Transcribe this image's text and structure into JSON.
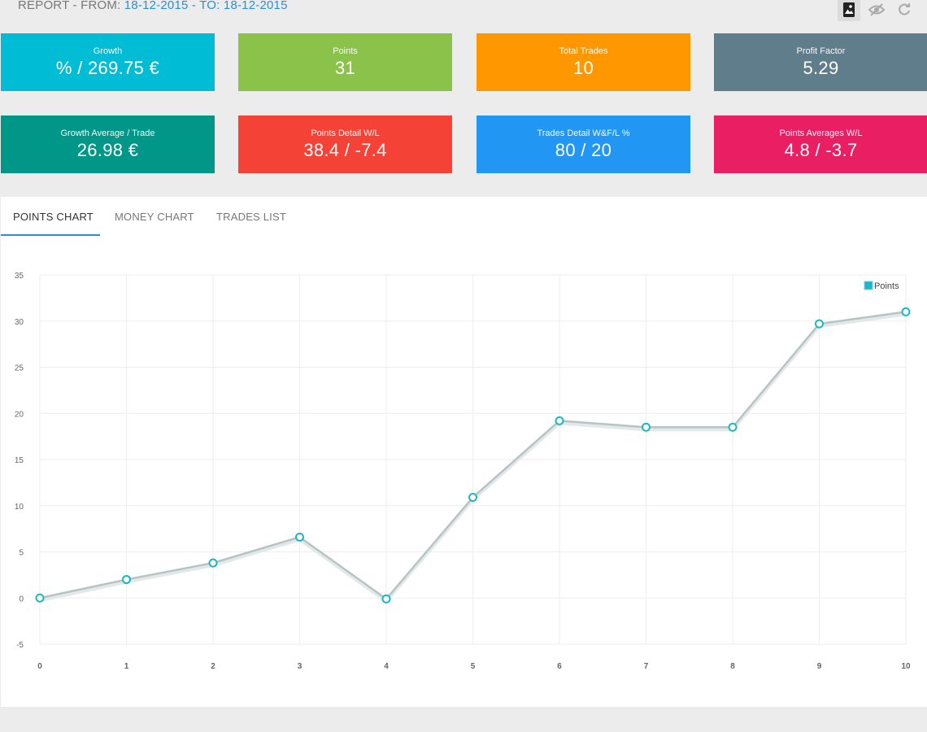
{
  "header": {
    "report_prefix": "REPORT - FROM:",
    "from_date": "18-12-2015",
    "to_prefix": "- TO:",
    "to_date": "18-12-2015",
    "tools": [
      "image-icon",
      "hide-icon",
      "refresh-icon"
    ]
  },
  "cards": [
    {
      "label": "Growth",
      "value": "% / 269.75 €",
      "color": "#00bcd4"
    },
    {
      "label": "Points",
      "value": "31",
      "color": "#8bc34a"
    },
    {
      "label": "Total Trades",
      "value": "10",
      "color": "#ff9800"
    },
    {
      "label": "Profit Factor",
      "value": "5.29",
      "color": "#607d8b"
    },
    {
      "label": "Growth Average / Trade",
      "value": "26.98 €",
      "color": "#009688"
    },
    {
      "label": "Points Detail W/L",
      "value": "38.4 / -7.4",
      "color": "#f44336"
    },
    {
      "label": "Trades Detail W&F/L %",
      "value": "80 / 20",
      "color": "#2196f3"
    },
    {
      "label": "Points Averages W/L",
      "value": "4.8 / -3.7",
      "color": "#e91e63"
    }
  ],
  "tabs": [
    {
      "label": "POINTS CHART",
      "active": true
    },
    {
      "label": "MONEY CHART",
      "active": false
    },
    {
      "label": "TRADES LIST",
      "active": false
    }
  ],
  "chart_data": {
    "type": "line",
    "x": [
      0,
      1,
      2,
      3,
      4,
      5,
      6,
      7,
      8,
      9,
      10
    ],
    "series": [
      {
        "name": "Points",
        "values": [
          0,
          2,
          3.8,
          6.6,
          -0.1,
          10.9,
          19.2,
          18.5,
          18.5,
          29.7,
          31
        ],
        "color": "#1bb6cc"
      }
    ],
    "xlim": [
      0,
      10
    ],
    "ylim": [
      -5,
      35
    ],
    "y_ticks": [
      35,
      30,
      25,
      20,
      15,
      10,
      5,
      0,
      -5
    ],
    "x_ticks": [
      0,
      1,
      2,
      3,
      4,
      5,
      6,
      7,
      8,
      9,
      10
    ],
    "grid": true,
    "legend": "top-right",
    "line_color": "#b8c3c3"
  }
}
